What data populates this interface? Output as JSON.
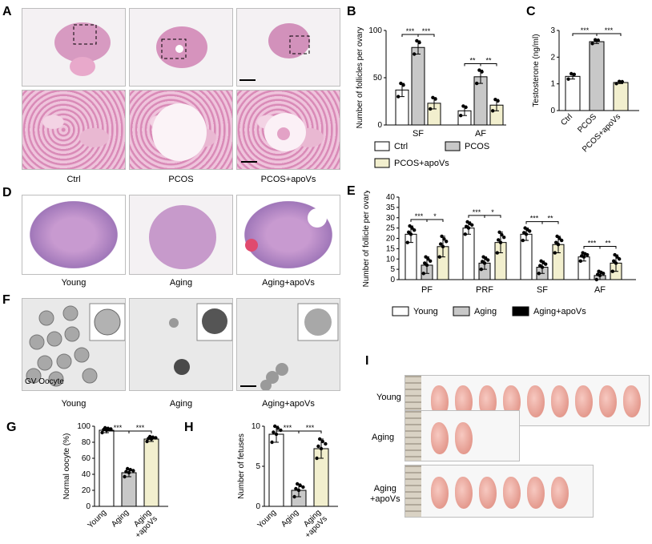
{
  "panels": {
    "A": "A",
    "B": "B",
    "C": "C",
    "D": "D",
    "E": "E",
    "F": "F",
    "G": "G",
    "H": "H",
    "I": "I"
  },
  "panelA": {
    "captions": [
      "Ctrl",
      "PCOS",
      "PCOS+apoVs"
    ]
  },
  "panelD": {
    "captions": [
      "Young",
      "Aging",
      "Aging+apoVs"
    ]
  },
  "panelF": {
    "captions": [
      "Young",
      "Aging",
      "Aging+apoVs"
    ],
    "inset_label": "GV Oocyte"
  },
  "panelI": {
    "rows": [
      "Young",
      "Aging",
      "Aging\n+apoVs"
    ],
    "counts": [
      9,
      2,
      6
    ]
  },
  "chart_data": [
    {
      "panel": "B",
      "type": "bar",
      "ylabel": "Number of follicles per ovary",
      "categories": [
        "SF",
        "AF"
      ],
      "ylim": [
        0,
        100
      ],
      "yticks": [
        "0",
        "50",
        "100"
      ],
      "series": [
        {
          "name": "Ctrl",
          "values": [
            37,
            15
          ],
          "errors": [
            7,
            5
          ]
        },
        {
          "name": "PCOS",
          "values": [
            82,
            51
          ],
          "errors": [
            7,
            7
          ]
        },
        {
          "name": "PCOS+apoVs",
          "values": [
            23,
            21
          ],
          "errors": [
            6,
            6
          ]
        }
      ],
      "significance": [
        [
          "***",
          "***"
        ],
        [
          "**",
          "**"
        ]
      ],
      "colors": {
        "Ctrl": "#ffffff",
        "PCOS": "#c8c8c8",
        "PCOS+apoVs": "#f2efce"
      }
    },
    {
      "panel": "C",
      "type": "bar",
      "ylabel": "Testosterone (ng/ml)",
      "categories": [
        "Ctrl",
        "PCOS",
        "PCOS+apoVs"
      ],
      "ylim": [
        0,
        3
      ],
      "yticks": [
        "0",
        "1",
        "2",
        "3"
      ],
      "values": [
        1.28,
        2.58,
        1.05
      ],
      "errors": [
        0.1,
        0.07,
        0.04
      ],
      "significance": [
        "***",
        "***"
      ]
    },
    {
      "panel": "E",
      "type": "bar",
      "ylabel": "Number of follicle per ovary",
      "categories": [
        "PF",
        "PRF",
        "SF",
        "AF"
      ],
      "ylim": [
        0,
        40
      ],
      "yticks": [
        "0",
        "5",
        "10",
        "15",
        "20",
        "25",
        "30",
        "35",
        "40"
      ],
      "series": [
        {
          "name": "Young",
          "values": [
            22,
            25,
            22,
            11
          ],
          "errors": [
            4,
            3,
            3,
            2
          ]
        },
        {
          "name": "Aging",
          "values": [
            7,
            8,
            6,
            2
          ],
          "errors": [
            4,
            3,
            3,
            2
          ]
        },
        {
          "name": "Aging+apoVs",
          "values": [
            16,
            18,
            17,
            8
          ],
          "errors": [
            5,
            5,
            4,
            4
          ]
        }
      ],
      "significance": [
        [
          "***",
          "*"
        ],
        [
          "***",
          "*"
        ],
        [
          "***",
          "**"
        ],
        [
          "***",
          "**"
        ]
      ],
      "colors": {
        "Young": "#ffffff",
        "Aging": "#c8c8c8",
        "Aging+apoVs": "#f2efce"
      },
      "legend_swatch": {
        "Aging+apoVs": "#000000"
      }
    },
    {
      "panel": "G",
      "type": "bar",
      "ylabel": "Normal oocyte (%)",
      "categories": [
        "Young",
        "Aging",
        "Aging\n+apoVs"
      ],
      "ylim": [
        0,
        100
      ],
      "yticks": [
        "0",
        "20",
        "40",
        "60",
        "80",
        "100"
      ],
      "values": [
        95,
        42,
        84
      ],
      "errors": [
        3,
        5,
        3
      ],
      "significance": [
        "***",
        "***"
      ]
    },
    {
      "panel": "H",
      "type": "bar",
      "ylabel": "Number of fetuses",
      "categories": [
        "Young",
        "Aging",
        "Aging\n+apoVs"
      ],
      "ylim": [
        0,
        10
      ],
      "yticks": [
        "0",
        "5",
        "10"
      ],
      "values": [
        9,
        2,
        7.2
      ],
      "errors": [
        1,
        0.8,
        1.2
      ],
      "significance": [
        "***",
        "***"
      ]
    }
  ]
}
